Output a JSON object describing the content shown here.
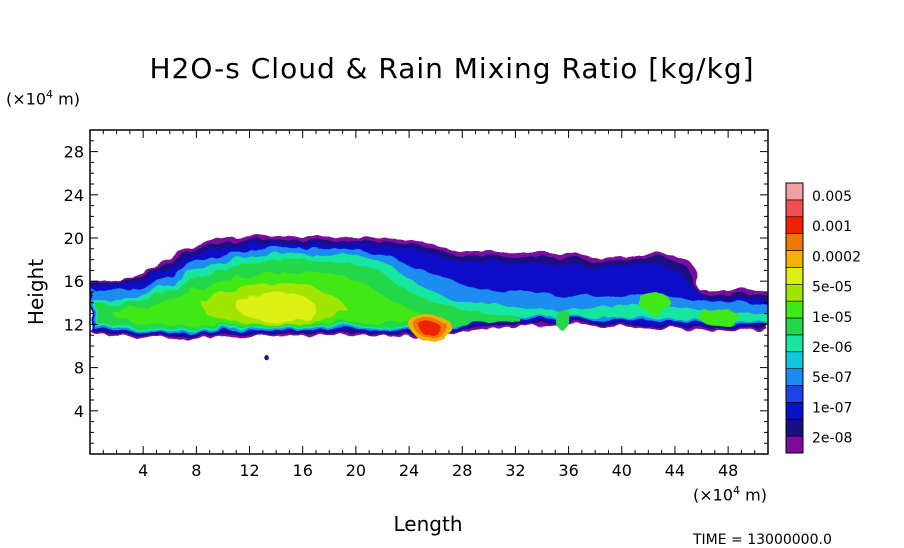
{
  "chart_data": {
    "type": "heatmap",
    "title": "H2O-s Cloud & Rain Mixing Ratio [kg/kg]",
    "xlabel": "Length",
    "ylabel": "Height",
    "x_unit_prefix": "(×10",
    "x_unit_exp": "4",
    "x_unit_suffix": " m)",
    "y_unit_prefix": "(×10",
    "y_unit_exp": "4",
    "y_unit_suffix": " m)",
    "xlim": [
      0,
      51
    ],
    "ylim": [
      0,
      30
    ],
    "x_ticks": [
      4,
      8,
      12,
      16,
      20,
      24,
      28,
      32,
      36,
      40,
      44,
      48
    ],
    "y_ticks": [
      4,
      8,
      12,
      16,
      20,
      24,
      28
    ],
    "colorbar": {
      "labels": [
        "0.005",
        "0.001",
        "0.0002",
        "5e-05",
        "1e-05",
        "2e-06",
        "5e-07",
        "1e-07",
        "2e-08"
      ],
      "colors": [
        "#7a0aa0",
        "#1a0f80",
        "#0b10c8",
        "#1e40e8",
        "#1a8cf0",
        "#10c8e0",
        "#18e6a0",
        "#20d848",
        "#40e818",
        "#a0e600",
        "#dcf014",
        "#f0b400",
        "#f07800",
        "#f02000",
        "#f05050",
        "#f4a0a0"
      ]
    },
    "cloud_layers": [
      {
        "level": "2e-08",
        "x": [
          0,
          51
        ],
        "y": [
          10.5,
          19.3
        ]
      },
      {
        "level": "1e-05",
        "x": [
          0.5,
          42
        ],
        "y": [
          11,
          19.5
        ]
      },
      {
        "level": "5e-05",
        "x": [
          11,
          17
        ],
        "y": [
          12,
          17.5
        ]
      },
      {
        "level": "0.001",
        "x": [
          24.2,
          26.5
        ],
        "y": [
          11.3,
          12.4
        ]
      }
    ]
  },
  "footer": {
    "time_label": "TIME = 13000000.0"
  }
}
